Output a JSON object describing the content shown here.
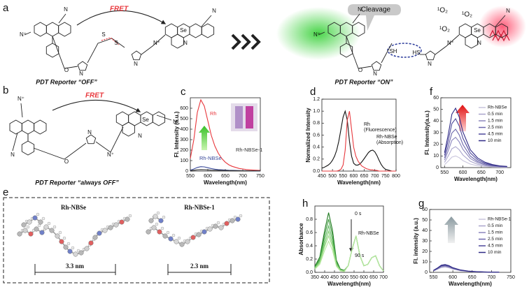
{
  "panel_labels": [
    "a",
    "b",
    "c",
    "d",
    "e",
    "f",
    "g",
    "h"
  ],
  "scheme_a": {
    "fret": "FRET",
    "off": "PDT Reporter  “OFF”",
    "on": "PDT Reporter  “ON”",
    "cleavage": "Cleavage",
    "singlet_oxygen": [
      "¹O₂",
      "¹O₂",
      "¹O₂"
    ],
    "atoms_off": [
      "N⁺",
      "N",
      "O",
      "N",
      "S",
      "S",
      "N",
      "N⁺",
      "Se",
      "N",
      "N"
    ],
    "atoms_on": [
      "N⁺",
      "N",
      "O",
      "N",
      "SH",
      "HS",
      "N",
      "N⁺",
      "Se",
      "N",
      "N"
    ]
  },
  "scheme_b": {
    "fret": "FRET",
    "label": "PDT Reporter  “always OFF”",
    "atoms": [
      "N⁺",
      "N",
      "O",
      "N",
      "N⁺",
      "Se",
      "N",
      "N"
    ]
  },
  "panel_e": {
    "molecules": [
      "Rh-NBSe",
      "Rh-NBSe-1"
    ],
    "lengths": [
      "3.3 nm",
      "2.3 nm"
    ]
  },
  "chart_data": [
    {
      "type": "line",
      "x": [
        550,
        560,
        570,
        580,
        590,
        600,
        610,
        620,
        630,
        640,
        650,
        660,
        670,
        680,
        690,
        700,
        710,
        720,
        730,
        740,
        750
      ],
      "series": [
        {
          "name": "Rh",
          "color": "#e8383d",
          "values": [
            120,
            300,
            560,
            680,
            620,
            480,
            340,
            240,
            170,
            120,
            85,
            60,
            45,
            35,
            25,
            20,
            15,
            12,
            10,
            8,
            6
          ]
        },
        {
          "name": "Rh-NBSe",
          "color": "#3a4a9a",
          "values": [
            8,
            20,
            35,
            42,
            40,
            32,
            24,
            18,
            14,
            12,
            10,
            8,
            7,
            6,
            5,
            4,
            4,
            3,
            3,
            2,
            2
          ]
        },
        {
          "name": "Rh-NBSe-1",
          "color": "#333333",
          "values": [
            4,
            8,
            12,
            14,
            13,
            11,
            9,
            8,
            7,
            6,
            6,
            5,
            5,
            4,
            4,
            3,
            3,
            3,
            2,
            2,
            2
          ]
        }
      ],
      "xlim": [
        550,
        750
      ],
      "ylim": [
        0,
        700
      ],
      "xticks": [
        550,
        600,
        650,
        700,
        750
      ],
      "yticks": [
        0,
        100,
        200,
        300,
        400,
        500,
        600
      ],
      "xlabel": "Wavelength(nm)",
      "ylabel": "Fl. Intensity (a.u.)",
      "legend": "inline"
    },
    {
      "type": "line",
      "x": [
        450,
        460,
        470,
        480,
        490,
        500,
        510,
        520,
        530,
        540,
        550,
        560,
        570,
        580,
        590,
        600,
        610,
        620,
        630,
        640,
        650,
        660,
        670,
        680,
        690,
        700,
        710,
        720,
        730,
        740,
        750,
        760,
        770,
        780,
        790,
        800
      ],
      "series": [
        {
          "color": "#111111",
          "values": [
            0.05,
            0.06,
            0.08,
            0.1,
            0.13,
            0.18,
            0.25,
            0.35,
            0.5,
            0.7,
            0.9,
            1.0,
            0.85,
            0.5,
            0.25,
            0.13,
            0.1,
            0.1,
            0.12,
            0.16,
            0.21,
            0.26,
            0.31,
            0.34,
            0.35,
            0.32,
            0.26,
            0.18,
            0.11,
            0.06,
            0.03,
            0.02,
            0.01,
            0,
            0,
            0
          ]
        },
        {
          "color": "#e8383d",
          "values": [
            0,
            0,
            0,
            0,
            0,
            0,
            0,
            0,
            0.01,
            0.03,
            0.1,
            0.35,
            0.85,
            1.0,
            0.7,
            0.4,
            0.25,
            0.17,
            0.12,
            0.08,
            0.06,
            0.04,
            0.03,
            0.02,
            0.02,
            0.01,
            0.01,
            0,
            0,
            0,
            0,
            0,
            0,
            0,
            0,
            0
          ]
        }
      ],
      "xlim": [
        450,
        800
      ],
      "ylim": [
        0,
        1.2
      ],
      "xticks": [
        450,
        500,
        550,
        600,
        650,
        700,
        750,
        800
      ],
      "yticks": [
        {
          "value": 0,
          "label": "0.0"
        },
        0.2,
        0.4,
        0.6,
        0.8,
        {
          "value": 1,
          "label": "1.0"
        },
        1.2
      ],
      "xlabel": "Wavelength(nm)",
      "ylabel": "Normalized Intensity",
      "annotations": [
        "Rh",
        "(Fluorescence)",
        "Rh-NBSe",
        "(Absorption)"
      ]
    },
    {
      "type": "line",
      "x": [
        550,
        560,
        570,
        580,
        590,
        600,
        620,
        640,
        660,
        680,
        700,
        720
      ],
      "series": [
        {
          "name": "Rh-NBSe",
          "color": "#c8c4dc",
          "values": [
            2.5,
            5.5,
            9,
            10,
            8.5,
            6,
            3,
            1.6,
            0.9,
            0.5,
            0.3,
            0.2
          ]
        },
        {
          "name": "0.5 min",
          "color": "#a9a4cc",
          "values": [
            4.5,
            9.9,
            16.2,
            18,
            15.3,
            10.8,
            5.4,
            2.9,
            1.6,
            0.9,
            0.5,
            0.4
          ]
        },
        {
          "name": "1.5 min",
          "color": "#8a85bc",
          "values": [
            6.5,
            14.3,
            23.4,
            26,
            22.1,
            15.6,
            7.8,
            4.2,
            2.3,
            1.3,
            0.8,
            0.5
          ]
        },
        {
          "name": "2.5 min",
          "color": "#6b66ab",
          "values": [
            8.3,
            18.2,
            29.7,
            33,
            28.1,
            19.8,
            9.9,
            5.3,
            3,
            1.7,
            1,
            0.7
          ]
        },
        {
          "name": "4.5 min",
          "color": "#4d489a",
          "values": [
            10.5,
            23.1,
            37.8,
            42,
            35.7,
            25.2,
            12.6,
            6.7,
            3.8,
            2.1,
            1.3,
            0.8
          ]
        },
        {
          "name": "10  min",
          "color": "#2f2a86",
          "values": [
            12.8,
            28.1,
            45.9,
            51,
            43.4,
            30.6,
            15.3,
            8.2,
            4.6,
            2.6,
            1.5,
            1
          ]
        }
      ],
      "xlim": [
        540,
        730
      ],
      "ylim": [
        0,
        60
      ],
      "xticks": [
        550,
        600,
        650,
        700
      ],
      "yticks": [
        0,
        10,
        20,
        30,
        40,
        50,
        60
      ],
      "xlabel": "Wavelength(nm)",
      "ylabel": "Fl. Intensity(a.u.)",
      "legend": "upper right"
    },
    {
      "type": "line",
      "x": [
        350,
        375,
        400,
        420,
        440,
        460,
        480,
        500,
        520,
        540,
        560,
        580,
        600,
        620,
        640,
        660,
        680,
        700
      ],
      "series": [
        {
          "color": "#1f7a1f",
          "values": [
            0.09,
            0.23,
            0.63,
            0.9,
            0.63,
            0.18,
            0.05,
            0.03,
            0.1,
            0.35,
            0.55,
            0.25,
            0.1,
            0.12,
            0.22,
            0.25,
            0.1,
            0.02
          ]
        },
        {
          "color": "#3c9a3c",
          "values": [
            0.08,
            0.2,
            0.56,
            0.8,
            0.56,
            0.16,
            0.04,
            0.02,
            0.1,
            0.35,
            0.55,
            0.25,
            0.1,
            0.12,
            0.22,
            0.25,
            0.1,
            0.02
          ]
        },
        {
          "color": "#5cb85c",
          "values": [
            0.07,
            0.18,
            0.49,
            0.7,
            0.49,
            0.14,
            0.04,
            0.02,
            0.1,
            0.35,
            0.55,
            0.25,
            0.1,
            0.12,
            0.22,
            0.25,
            0.1,
            0.02
          ]
        },
        {
          "color": "#7ccc6c",
          "values": [
            0.06,
            0.16,
            0.43,
            0.62,
            0.43,
            0.12,
            0.03,
            0.02,
            0.1,
            0.35,
            0.55,
            0.25,
            0.1,
            0.12,
            0.22,
            0.25,
            0.1,
            0.02
          ]
        },
        {
          "color": "#9bdb85",
          "values": [
            0.06,
            0.14,
            0.39,
            0.55,
            0.39,
            0.11,
            0.03,
            0.02,
            0.1,
            0.35,
            0.55,
            0.25,
            0.1,
            0.12,
            0.22,
            0.25,
            0.1,
            0.02
          ]
        },
        {
          "color": "#b8e8a0",
          "values": [
            0.05,
            0.12,
            0.33,
            0.47,
            0.33,
            0.09,
            0.02,
            0.01,
            0.1,
            0.35,
            0.55,
            0.25,
            0.1,
            0.12,
            0.22,
            0.25,
            0.1,
            0.02
          ]
        }
      ],
      "xlim": [
        350,
        700
      ],
      "ylim": [
        0,
        1.0
      ],
      "xticks": [
        350,
        400,
        450,
        500,
        550,
        600,
        650,
        700
      ],
      "yticks": [
        {
          "value": 0,
          "label": "0.0"
        },
        0.2,
        0.4,
        0.6,
        0.8
      ],
      "xlabel": "Wavelength(nm)",
      "ylabel": "Absorbance",
      "annotations": [
        "0 s",
        "90 s",
        "Rh-NBSe"
      ]
    },
    {
      "type": "line",
      "x": [
        550,
        560,
        570,
        580,
        590,
        600,
        620,
        640,
        660,
        680,
        700,
        720
      ],
      "series": [
        {
          "name": "Rh-NBSe-1",
          "color": "#c8c4dc",
          "values": [
            1.3,
            2.8,
            4.5,
            5,
            4.3,
            3,
            1.5,
            0.8,
            0.5,
            0.3,
            0.2,
            0.1
          ]
        },
        {
          "name": "0.5 min",
          "color": "#a9a4cc",
          "values": [
            1.4,
            3,
            5,
            5.5,
            4.7,
            3.3,
            1.7,
            0.9,
            0.5,
            0.3,
            0.2,
            0.1
          ]
        },
        {
          "name": "1.5 min",
          "color": "#8a85bc",
          "values": [
            1.5,
            3.3,
            5.4,
            6,
            5.1,
            3.6,
            1.8,
            1,
            0.5,
            0.3,
            0.2,
            0.1
          ]
        },
        {
          "name": "2.5 min",
          "color": "#6b66ab",
          "values": [
            1.6,
            3.6,
            5.9,
            6.5,
            5.5,
            3.9,
            2,
            1,
            0.6,
            0.3,
            0.2,
            0.1
          ]
        },
        {
          "name": "4.5 min",
          "color": "#4d489a",
          "values": [
            1.8,
            3.9,
            6.3,
            7,
            6,
            4.2,
            2.1,
            1.1,
            0.6,
            0.4,
            0.2,
            0.1
          ]
        },
        {
          "name": "10  min",
          "color": "#2f2a86",
          "values": [
            1.9,
            4.1,
            6.8,
            7.5,
            6.4,
            4.5,
            2.3,
            1.2,
            0.7,
            0.4,
            0.2,
            0.2
          ]
        }
      ],
      "xlim": [
        540,
        750
      ],
      "ylim": [
        0,
        60
      ],
      "xticks": [
        550,
        600,
        650,
        700,
        750
      ],
      "yticks": [
        0,
        10,
        20,
        30,
        40,
        50,
        60
      ],
      "xlabel": "Wavelength(nm)",
      "ylabel": "Fl. intensity (a.u.)",
      "legend": "upper right"
    }
  ]
}
